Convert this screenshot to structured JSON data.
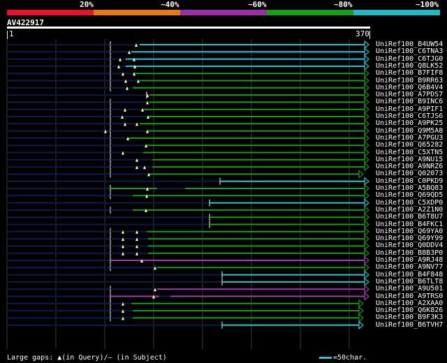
{
  "legend": {
    "colors": [
      "#e8112d",
      "#e87a14",
      "#9c2fa8",
      "#1a9e1a",
      "#22b8c8"
    ],
    "labels": [
      "20%",
      "~40%",
      "~60%",
      "~80%",
      "~100%"
    ]
  },
  "query": {
    "name": "AV422917",
    "start": "1",
    "end": "370"
  },
  "hits": [
    {
      "name": "UniRef100_B4UW54",
      "color": "cyan",
      "start": 158,
      "end": 528,
      "gapFrom": 158,
      "gapTo": 200,
      "tri": [
        195
      ],
      "arrow": true
    },
    {
      "name": "UniRef100_C6TNA3",
      "color": "cyan",
      "start": 158,
      "end": 528,
      "gapFrom": 158,
      "gapTo": 188,
      "tri": [
        185
      ],
      "arrow": true
    },
    {
      "name": "UniRef100_C6TJG0",
      "color": "cyan",
      "start": 158,
      "end": 528,
      "gapFrom": 158,
      "gapTo": 180,
      "tri": [
        172,
        192
      ],
      "arrow": true
    },
    {
      "name": "UniRef100_Q8LK52",
      "color": "cyan",
      "start": 158,
      "end": 528,
      "gapFrom": 158,
      "gapTo": 180,
      "tri": [
        170,
        193
      ],
      "arrow": true
    },
    {
      "name": "UniRef100_B7FIF8",
      "color": "green",
      "start": 158,
      "end": 528,
      "gapFrom": 158,
      "gapTo": 192,
      "tri": [
        176,
        192
      ],
      "arrow": true
    },
    {
      "name": "UniRef100_B9RR63",
      "color": "green",
      "start": 158,
      "end": 528,
      "gapFrom": 158,
      "gapTo": 200,
      "tri": [
        180,
        198
      ],
      "arrow": true
    },
    {
      "name": "UniRef100_Q6B4V4",
      "color": "green",
      "start": 158,
      "end": 528,
      "gapFrom": 158,
      "gapTo": 190,
      "tri": [
        182
      ],
      "arrow": true
    },
    {
      "name": "UniRef100_A7PDS7",
      "color": "green",
      "start": 210,
      "end": 528,
      "gapFrom": 210,
      "gapTo": 214,
      "tri": [
        211
      ],
      "arrow": true
    },
    {
      "name": "UniRef100_B9INC6",
      "color": "green",
      "start": 158,
      "end": 528,
      "gapFrom": 158,
      "gapTo": 214,
      "tri": [
        211
      ],
      "arrow": true
    },
    {
      "name": "UniRef100_A9PIF1",
      "color": "green",
      "start": 158,
      "end": 528,
      "gapFrom": 158,
      "gapTo": 205,
      "tri": [
        179,
        204
      ],
      "arrow": true
    },
    {
      "name": "UniRef100_C6TJS6",
      "color": "green",
      "start": 158,
      "end": 528,
      "gapFrom": 158,
      "gapTo": 213,
      "tri": [
        175,
        212
      ],
      "arrow": true
    },
    {
      "name": "UniRef100_A9PK25",
      "color": "green",
      "start": 158,
      "end": 528,
      "gapFrom": 158,
      "gapTo": 200,
      "tri": [
        179,
        196
      ],
      "arrow": true
    },
    {
      "name": "UniRef100_Q9M5A8",
      "color": "green",
      "start": 158,
      "end": 528,
      "gapFrom": 158,
      "gapTo": 212,
      "tri": [
        151,
        211
      ],
      "arrow": true
    },
    {
      "name": "UniRef100_A7PGU3",
      "color": "green",
      "start": 158,
      "end": 528,
      "gapFrom": 158,
      "gapTo": 184,
      "tri": [
        183
      ],
      "arrow": true
    },
    {
      "name": "UniRef100_Q65282",
      "color": "green",
      "start": 158,
      "end": 528,
      "gapFrom": 158,
      "gapTo": 210,
      "tri": [
        209
      ],
      "arrow": true
    },
    {
      "name": "UniRef100_C5XTN5",
      "color": "green",
      "start": 158,
      "end": 528,
      "gapFrom": 158,
      "gapTo": 205,
      "tri": [
        176
      ],
      "arrow": true
    },
    {
      "name": "UniRef100_A9NU15",
      "color": "green",
      "start": 158,
      "end": 528,
      "gapFrom": 158,
      "gapTo": 218,
      "tri": [
        196
      ],
      "arrow": true
    },
    {
      "name": "UniRef100_A9NRZ6",
      "color": "green",
      "start": 158,
      "end": 528,
      "gapFrom": 158,
      "gapTo": 218,
      "tri": [
        196,
        207
      ],
      "arrow": true
    },
    {
      "name": "UniRef100_Q02073",
      "color": "green",
      "start": 158,
      "end": 520,
      "gapFrom": 158,
      "gapTo": 214,
      "tri": [
        213
      ],
      "arrow": true
    },
    {
      "name": "UniRef100_C0PKD9",
      "color": "cyan",
      "start": 315,
      "end": 528,
      "gapFrom": 315,
      "gapTo": 315,
      "tri": [],
      "arrow": true
    },
    {
      "name": "UniRef100_A5BQ83",
      "color": "green",
      "start": 158,
      "end": 528,
      "gapFrom": 225,
      "gapTo": 265,
      "tri": [
        211
      ],
      "arrow": true
    },
    {
      "name": "UniRef100_Q69QD5",
      "color": "green",
      "start": 158,
      "end": 528,
      "gapFrom": 158,
      "gapTo": 190,
      "tri": [
        210
      ],
      "arrow": true
    },
    {
      "name": "UniRef100_C5XDP0",
      "color": "cyan",
      "start": 300,
      "end": 528,
      "gapFrom": 300,
      "gapTo": 300,
      "tri": [],
      "arrow": true
    },
    {
      "name": "UniRef100_A2Z1N0",
      "color": "green",
      "start": 158,
      "end": 528,
      "gapFrom": 158,
      "gapTo": 190,
      "tri": [
        209
      ],
      "arrow": true
    },
    {
      "name": "UniRef100_B6T8U7",
      "color": "green",
      "start": 300,
      "end": 528,
      "gapFrom": 300,
      "gapTo": 300,
      "tri": [],
      "arrow": true
    },
    {
      "name": "UniRef100_B4FKC1",
      "color": "green",
      "start": 300,
      "end": 528,
      "gapFrom": 300,
      "gapTo": 300,
      "tri": [],
      "arrow": true
    },
    {
      "name": "UniRef100_Q69YA0",
      "color": "green",
      "start": 158,
      "end": 528,
      "gapFrom": 158,
      "gapTo": 210,
      "tri": [
        176,
        196
      ],
      "arrow": true
    },
    {
      "name": "UniRef100_Q69Y99",
      "color": "green",
      "start": 158,
      "end": 528,
      "gapFrom": 158,
      "gapTo": 212,
      "tri": [
        176,
        196
      ],
      "arrow": true
    },
    {
      "name": "UniRef100_Q0DDV4",
      "color": "green",
      "start": 158,
      "end": 528,
      "gapFrom": 158,
      "gapTo": 212,
      "tri": [
        176,
        196
      ],
      "arrow": true
    },
    {
      "name": "UniRef100_B8B3P0",
      "color": "green",
      "start": 158,
      "end": 528,
      "gapFrom": 158,
      "gapTo": 212,
      "tri": [
        176,
        196
      ],
      "arrow": true
    },
    {
      "name": "UniRef100_A9RJ48",
      "color": "purple",
      "start": 158,
      "end": 528,
      "gapFrom": 158,
      "gapTo": 158,
      "tri": [
        203
      ],
      "arrow": true
    },
    {
      "name": "UniRef100_A9NV77",
      "color": "green",
      "start": 158,
      "end": 528,
      "gapFrom": 158,
      "gapTo": 225,
      "tri": [
        222
      ],
      "arrow": true
    },
    {
      "name": "UniRef100_B4F848",
      "color": "cyan",
      "start": 318,
      "end": 528,
      "gapFrom": 318,
      "gapTo": 318,
      "tri": [],
      "arrow": true
    },
    {
      "name": "UniRef100_B6TLT8",
      "color": "cyan",
      "start": 318,
      "end": 528,
      "gapFrom": 318,
      "gapTo": 318,
      "tri": [],
      "arrow": true
    },
    {
      "name": "UniRef100_A9U501",
      "color": "purple",
      "start": 158,
      "end": 528,
      "gapFrom": 158,
      "gapTo": 225,
      "tri": [
        222
      ],
      "arrow": true
    },
    {
      "name": "UniRef100_A9TRS0",
      "color": "purple",
      "start": 158,
      "end": 528,
      "gapFrom": 228,
      "gapTo": 244,
      "tri": [
        220
      ],
      "arrow": true
    },
    {
      "name": "UniRef100_A2XAA0",
      "color": "green",
      "start": 158,
      "end": 520,
      "gapFrom": 158,
      "gapTo": 188,
      "tri": [
        176
      ],
      "arrow": true
    },
    {
      "name": "UniRef100_Q6K826",
      "color": "green",
      "start": 158,
      "end": 520,
      "gapFrom": 158,
      "gapTo": 190,
      "tri": [
        176
      ],
      "arrow": true
    },
    {
      "name": "UniRef100_B9F3K3",
      "color": "green",
      "start": 158,
      "end": 520,
      "gapFrom": 158,
      "gapTo": 190,
      "tri": [
        176
      ],
      "arrow": true
    },
    {
      "name": "UniRef100_B6TVH7",
      "color": "cyan",
      "start": 318,
      "end": 520,
      "gapFrom": 318,
      "gapTo": 318,
      "tri": [],
      "arrow": true
    }
  ],
  "footer": {
    "text": "Large gaps: ▲(in Query)/— (in Subject)",
    "scale_key": "=50char."
  },
  "palette": {
    "cyan": "#2ec4d6",
    "green": "#1c9a1c",
    "purple": "#a43ab8",
    "navy": "#0f1a4d",
    "grid": "#3a3a3a"
  }
}
